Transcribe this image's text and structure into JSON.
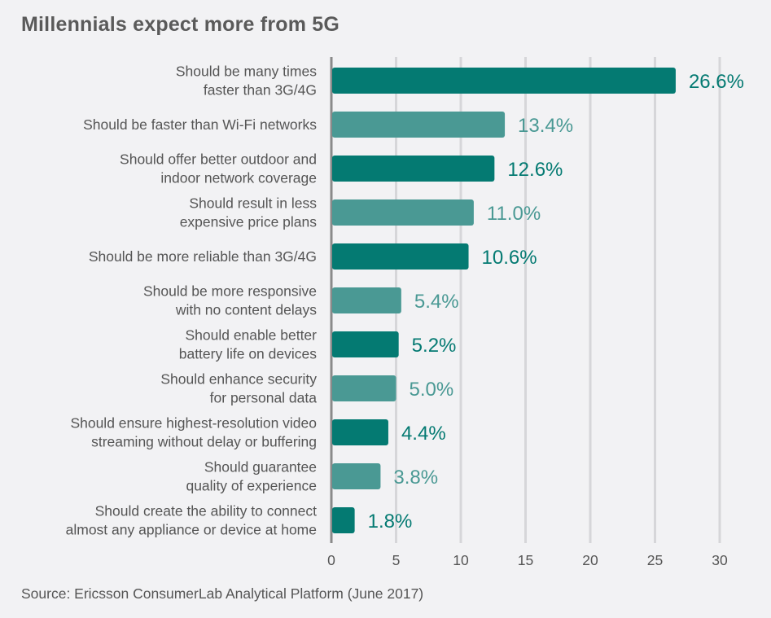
{
  "chart_data": {
    "type": "bar",
    "orientation": "horizontal",
    "title": "Millennials expect more from 5G",
    "source": "Source: Ericsson ConsumerLab Analytical Platform (June 2017)",
    "categories": [
      [
        "Should be many times",
        "faster than 3G/4G"
      ],
      [
        "Should be faster than Wi-Fi networks"
      ],
      [
        "Should offer better outdoor and",
        "indoor network coverage"
      ],
      [
        "Should result in less",
        "expensive price plans"
      ],
      [
        "Should be more reliable than 3G/4G"
      ],
      [
        "Should be more responsive",
        "with no content delays"
      ],
      [
        "Should enable better",
        "battery life on devices"
      ],
      [
        "Should enhance security",
        "for personal data"
      ],
      [
        "Should ensure highest-resolution video",
        "streaming without delay or buffering"
      ],
      [
        "Should guarantee",
        "quality of experience"
      ],
      [
        "Should create the ability to connect",
        "almost any appliance or device at home"
      ]
    ],
    "values": [
      26.6,
      13.4,
      12.6,
      11.0,
      10.6,
      5.4,
      5.2,
      5.0,
      4.4,
      3.8,
      1.8
    ],
    "value_labels": [
      "26.6%",
      "13.4%",
      "12.6%",
      "11.0%",
      "10.6%",
      "5.4%",
      "5.2%",
      "5.0%",
      "4.4%",
      "3.8%",
      "1.8%"
    ],
    "xlim": [
      0,
      30
    ],
    "xticks": [
      0,
      5,
      10,
      15,
      20,
      25,
      30
    ],
    "grid": true,
    "colors": {
      "dark": "#047a72",
      "light": "#4a9994",
      "grid": "#d6d6d9",
      "axis": "#8a8a8a"
    }
  }
}
